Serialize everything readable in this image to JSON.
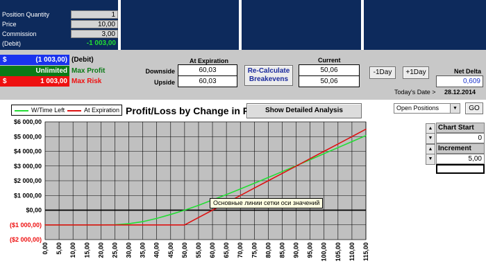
{
  "inputs": {
    "position_quantity_label": "Position Quantity",
    "position_quantity": "1",
    "price_label": "Price",
    "price": "10,00",
    "commission_label": "Commission",
    "commission": "3,00",
    "debit_label": "(Debit)",
    "debit": "-1 003,00"
  },
  "summary": {
    "debit_currency": "$",
    "debit_amount": "(1 003,00)",
    "debit_label": "(Debit)",
    "max_profit_value": "Unlimited",
    "max_profit_label": "Max Profit",
    "max_risk_currency": "$",
    "max_risk_value": "1 003,00",
    "max_risk_label": "Max Risk"
  },
  "breakeven": {
    "at_expiration_header": "At Expiration",
    "current_header": "Current",
    "downside_label": "Downside",
    "upside_label": "Upside",
    "downside_expiration": "60,03",
    "upside_expiration": "60,03",
    "downside_current": "50,06",
    "upside_current": "50,06",
    "recalc_button": "Re-Calculate Breakevens",
    "minus_day_button": "-1Day",
    "plus_day_button": "+1Day",
    "net_delta_label": "Net Delta",
    "net_delta_value": "0,609",
    "todays_date_label": "Today's Date >",
    "todays_date_value": "28.12.2014"
  },
  "chart_header": {
    "title": "Profit/Loss by Change in Price",
    "detailed_button": "Show Detailed Analysis",
    "legend_wtime": "W/Time Left",
    "legend_expiration": "At Expiration"
  },
  "right_panel": {
    "positions_select": "Open Positions",
    "go_button": "GO",
    "chart_start_label": "Chart Start",
    "chart_start_value": "0",
    "increment_label": "Increment",
    "increment_value": "5,00"
  },
  "tooltip": "Основные линии сетки оси значений",
  "colors": {
    "navy": "#0d2a5c",
    "wtime_line": "#22dd33",
    "expiration_line": "#dd1111",
    "plot_bg": "#c0c0c0"
  },
  "chart_data": {
    "type": "line",
    "title": "Profit/Loss by Change in Price",
    "x": [
      0,
      5,
      10,
      15,
      20,
      25,
      30,
      35,
      40,
      45,
      50,
      55,
      60,
      65,
      70,
      75,
      80,
      85,
      90,
      95,
      100,
      105,
      110,
      115
    ],
    "x_tick_labels": [
      "0,00",
      "5,00",
      "10,00",
      "15,00",
      "20,00",
      "25,00",
      "30,00",
      "35,00",
      "40,00",
      "45,00",
      "50,00",
      "55,00",
      "60,00",
      "65,00",
      "70,00",
      "75,00",
      "80,00",
      "85,00",
      "90,00",
      "95,00",
      "100,00",
      "105,00",
      "110,00",
      "115,00"
    ],
    "y_tick_labels": [
      "$6 000,00",
      "$5 000,00",
      "$4 000,00",
      "$3 000,00",
      "$2 000,00",
      "$1 000,00",
      "$0,00",
      "($1 000,00)",
      "($2 000,00)"
    ],
    "y_ticks": [
      6000,
      5000,
      4000,
      3000,
      2000,
      1000,
      0,
      -1000,
      -2000
    ],
    "ylim": [
      -2000,
      6000
    ],
    "xlim": [
      0,
      115
    ],
    "grid": true,
    "legend_position": "top-left",
    "series": [
      {
        "name": "W/Time Left",
        "color": "#22dd33",
        "values": [
          -1000,
          -1000,
          -1000,
          -1000,
          -1000,
          -995,
          -920,
          -780,
          -560,
          -290,
          0,
          330,
          690,
          1060,
          1440,
          1830,
          2220,
          2620,
          3020,
          3430,
          3840,
          4250,
          4660,
          5070
        ]
      },
      {
        "name": "At Expiration",
        "color": "#dd1111",
        "values": [
          -1000,
          -1000,
          -1000,
          -1000,
          -1000,
          -1000,
          -1000,
          -1000,
          -1000,
          -1000,
          -1000,
          -500,
          0,
          500,
          1000,
          1500,
          2000,
          2500,
          3000,
          3500,
          4000,
          4500,
          5000,
          5500
        ]
      }
    ]
  }
}
